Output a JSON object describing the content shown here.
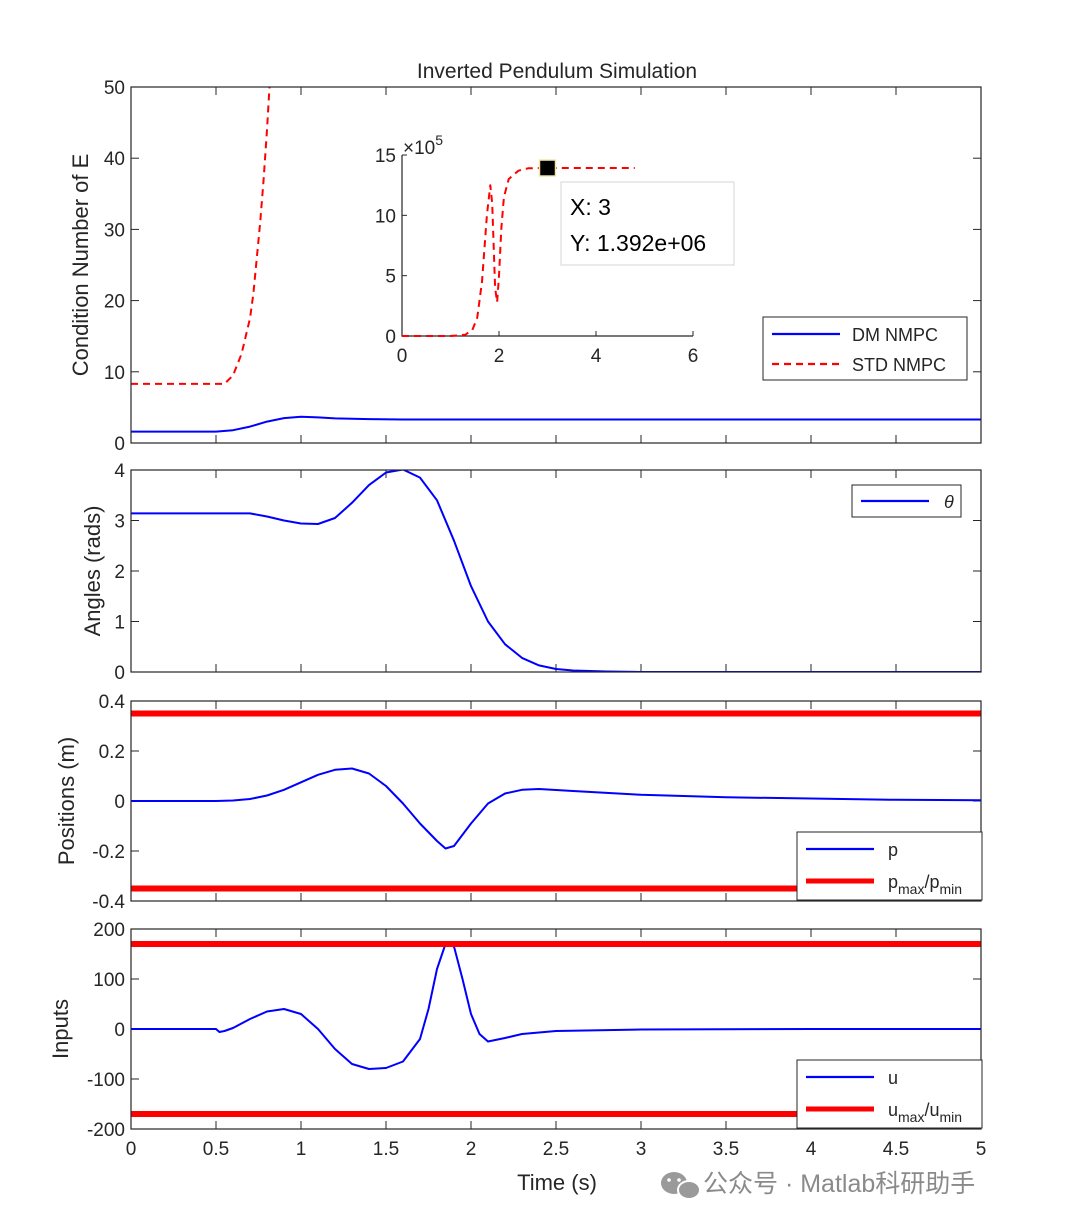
{
  "colors": {
    "blue": "#0000ff",
    "red": "#ff0000",
    "axis": "#262626",
    "watermark": "#8a8a8a"
  },
  "chart_data": [
    {
      "id": "cond",
      "type": "line",
      "title": "Inverted Pendulum Simulation",
      "ylabel": "Condition Number of E",
      "xlabel": "",
      "xlim": [
        0,
        5
      ],
      "ylim": [
        0,
        50
      ],
      "xticks": [
        0,
        0.5,
        1,
        1.5,
        2,
        2.5,
        3,
        3.5,
        4,
        4.5,
        5
      ],
      "yticks": [
        0,
        10,
        20,
        30,
        40,
        50
      ],
      "xtick_labels": [],
      "ytick_labels": [
        "0",
        "10",
        "20",
        "30",
        "40",
        "50"
      ],
      "legend": {
        "position": "bottom-right",
        "entries": [
          "DM NMPC",
          "STD NMPC"
        ]
      },
      "series": [
        {
          "name": "DM NMPC",
          "color": "#0000ff",
          "style": "solid",
          "x": [
            0,
            0.3,
            0.5,
            0.6,
            0.7,
            0.8,
            0.9,
            1.0,
            1.1,
            1.2,
            1.4,
            1.6,
            2.0,
            3.0,
            4.0,
            5.0
          ],
          "y": [
            1.6,
            1.6,
            1.6,
            1.8,
            2.3,
            3.0,
            3.5,
            3.7,
            3.6,
            3.45,
            3.35,
            3.3,
            3.3,
            3.3,
            3.3,
            3.3
          ]
        },
        {
          "name": "STD NMPC",
          "color": "#ff0000",
          "style": "dashed",
          "x": [
            0,
            0.5,
            0.55,
            0.6,
            0.65,
            0.7,
            0.72,
            0.74,
            0.76,
            0.78,
            0.8,
            0.815
          ],
          "y": [
            8.3,
            8.3,
            8.3,
            9.5,
            12.5,
            17.5,
            21,
            26,
            31,
            37,
            44,
            50
          ]
        }
      ],
      "inset": {
        "type": "line",
        "xlim": [
          0,
          6
        ],
        "ylim": [
          0,
          15
        ],
        "xticks": [
          0,
          2,
          4,
          6
        ],
        "yticks": [
          0,
          5,
          10,
          15
        ],
        "xtick_labels": [
          "0",
          "2",
          "4",
          "6"
        ],
        "ytick_labels": [
          "0",
          "5",
          "10",
          "15"
        ],
        "exponent_label": "×10",
        "exponent_power": "5",
        "series": [
          {
            "name": "STD NMPC",
            "color": "#ff0000",
            "style": "dashed",
            "x": [
              0,
              1.0,
              1.3,
              1.45,
              1.55,
              1.65,
              1.75,
              1.82,
              1.86,
              1.92,
              1.96,
              2.0,
              2.05,
              2.1,
              2.2,
              2.4,
              2.6,
              3.0,
              3.5,
              4.0,
              4.8
            ],
            "y": [
              0,
              0,
              0.1,
              0.5,
              1.5,
              4.5,
              10.0,
              12.5,
              11.0,
              4.0,
              2.8,
              5.0,
              9.0,
              11.5,
              13.0,
              13.7,
              13.9,
              13.92,
              13.92,
              13.92,
              13.92
            ]
          }
        ],
        "marker": {
          "x": 3,
          "y": 13.92
        },
        "datatip": {
          "x_text": "X: 3",
          "y_text": "Y: 1.392e+06"
        }
      }
    },
    {
      "id": "angle",
      "type": "line",
      "ylabel": "Angles (rads)",
      "xlim": [
        0,
        5
      ],
      "ylim": [
        0,
        4
      ],
      "xticks": [
        0,
        0.5,
        1,
        1.5,
        2,
        2.5,
        3,
        3.5,
        4,
        4.5,
        5
      ],
      "yticks": [
        0,
        1,
        2,
        3,
        4
      ],
      "xtick_labels": [],
      "ytick_labels": [
        "0",
        "1",
        "2",
        "3",
        "4"
      ],
      "legend": {
        "position": "top-right",
        "entries": [
          "θ"
        ]
      },
      "series": [
        {
          "name": "θ",
          "color": "#0000ff",
          "style": "solid",
          "x": [
            0,
            0.5,
            0.7,
            0.8,
            0.9,
            1.0,
            1.1,
            1.2,
            1.3,
            1.4,
            1.5,
            1.6,
            1.7,
            1.8,
            1.9,
            2.0,
            2.1,
            2.2,
            2.3,
            2.4,
            2.5,
            2.6,
            2.8,
            3.0,
            4.0,
            5.0
          ],
          "y": [
            3.14,
            3.14,
            3.14,
            3.08,
            3.0,
            2.94,
            2.93,
            3.05,
            3.35,
            3.7,
            3.95,
            4.01,
            3.85,
            3.4,
            2.6,
            1.7,
            1.0,
            0.55,
            0.28,
            0.13,
            0.06,
            0.03,
            0.01,
            0.0,
            0.0,
            0.0
          ]
        }
      ]
    },
    {
      "id": "pos",
      "type": "line",
      "ylabel": "Positions (m)",
      "xlim": [
        0,
        5
      ],
      "ylim": [
        -0.4,
        0.4
      ],
      "xticks": [
        0,
        0.5,
        1,
        1.5,
        2,
        2.5,
        3,
        3.5,
        4,
        4.5,
        5
      ],
      "yticks": [
        -0.4,
        -0.2,
        0,
        0.2,
        0.4
      ],
      "xtick_labels": [],
      "ytick_labels": [
        "-0.4",
        "-0.2",
        "0",
        "0.2",
        "0.4"
      ],
      "legend": {
        "position": "bottom-right",
        "entries": [
          "p",
          "p_max/p_min"
        ]
      },
      "legend_text": {
        "p": "p",
        "base": "p",
        "sub1": "max",
        "sep": "/p",
        "sub2": "min"
      },
      "series": [
        {
          "name": "p",
          "color": "#0000ff",
          "style": "solid",
          "x": [
            0,
            0.5,
            0.6,
            0.7,
            0.8,
            0.9,
            1.0,
            1.1,
            1.2,
            1.3,
            1.4,
            1.5,
            1.6,
            1.7,
            1.8,
            1.85,
            1.9,
            2.0,
            2.1,
            2.2,
            2.3,
            2.4,
            2.6,
            3.0,
            3.5,
            4.0,
            4.5,
            5.0
          ],
          "y": [
            0,
            0,
            0.002,
            0.008,
            0.022,
            0.045,
            0.075,
            0.105,
            0.125,
            0.13,
            0.11,
            0.06,
            -0.01,
            -0.09,
            -0.16,
            -0.19,
            -0.18,
            -0.09,
            -0.01,
            0.03,
            0.045,
            0.048,
            0.04,
            0.025,
            0.015,
            0.01,
            0.005,
            0.003
          ]
        },
        {
          "name": "p_max/p_min (upper)",
          "color": "#ff0000",
          "style": "thick",
          "x": [
            0,
            5
          ],
          "y": [
            0.35,
            0.35
          ]
        },
        {
          "name": "p_max/p_min (lower)",
          "color": "#ff0000",
          "style": "thick",
          "x": [
            0,
            5
          ],
          "y": [
            -0.35,
            -0.35
          ]
        }
      ]
    },
    {
      "id": "input",
      "type": "line",
      "ylabel": "Inputs",
      "xlabel": "Time (s)",
      "xlim": [
        0,
        5
      ],
      "ylim": [
        -200,
        200
      ],
      "xticks": [
        0,
        0.5,
        1,
        1.5,
        2,
        2.5,
        3,
        3.5,
        4,
        4.5,
        5
      ],
      "yticks": [
        -200,
        -100,
        0,
        100,
        200
      ],
      "xtick_labels": [
        "0",
        "0.5",
        "1",
        "1.5",
        "2",
        "2.5",
        "3",
        "3.5",
        "4",
        "4.5",
        "5"
      ],
      "ytick_labels": [
        "-200",
        "-100",
        "0",
        "100",
        "200"
      ],
      "legend": {
        "position": "bottom-right",
        "entries": [
          "u",
          "u_max/u_min"
        ]
      },
      "legend_text": {
        "p": "u",
        "base": "u",
        "sub1": "max",
        "sep": "/u",
        "sub2": "min"
      },
      "series": [
        {
          "name": "u",
          "color": "#0000ff",
          "style": "solid",
          "x": [
            0,
            0.5,
            0.52,
            0.55,
            0.6,
            0.7,
            0.8,
            0.9,
            1.0,
            1.1,
            1.2,
            1.3,
            1.4,
            1.5,
            1.6,
            1.7,
            1.75,
            1.8,
            1.85,
            1.9,
            1.95,
            2.0,
            2.05,
            2.1,
            2.2,
            2.3,
            2.5,
            3.0,
            4.0,
            5.0
          ],
          "y": [
            0,
            0,
            -6,
            -4,
            2,
            20,
            35,
            40,
            30,
            0,
            -40,
            -70,
            -80,
            -78,
            -65,
            -20,
            40,
            120,
            170,
            165,
            100,
            30,
            -10,
            -25,
            -18,
            -10,
            -4,
            -1,
            0,
            0
          ]
        },
        {
          "name": "u_max/u_min (upper)",
          "color": "#ff0000",
          "style": "thick",
          "x": [
            0,
            5
          ],
          "y": [
            170,
            170
          ]
        },
        {
          "name": "u_max/u_min (lower)",
          "color": "#ff0000",
          "style": "thick",
          "x": [
            0,
            5
          ],
          "y": [
            -170,
            -170
          ]
        }
      ]
    }
  ],
  "watermark": {
    "icon": "wechat-icon",
    "text": "公众号 · Matlab科研助手"
  }
}
